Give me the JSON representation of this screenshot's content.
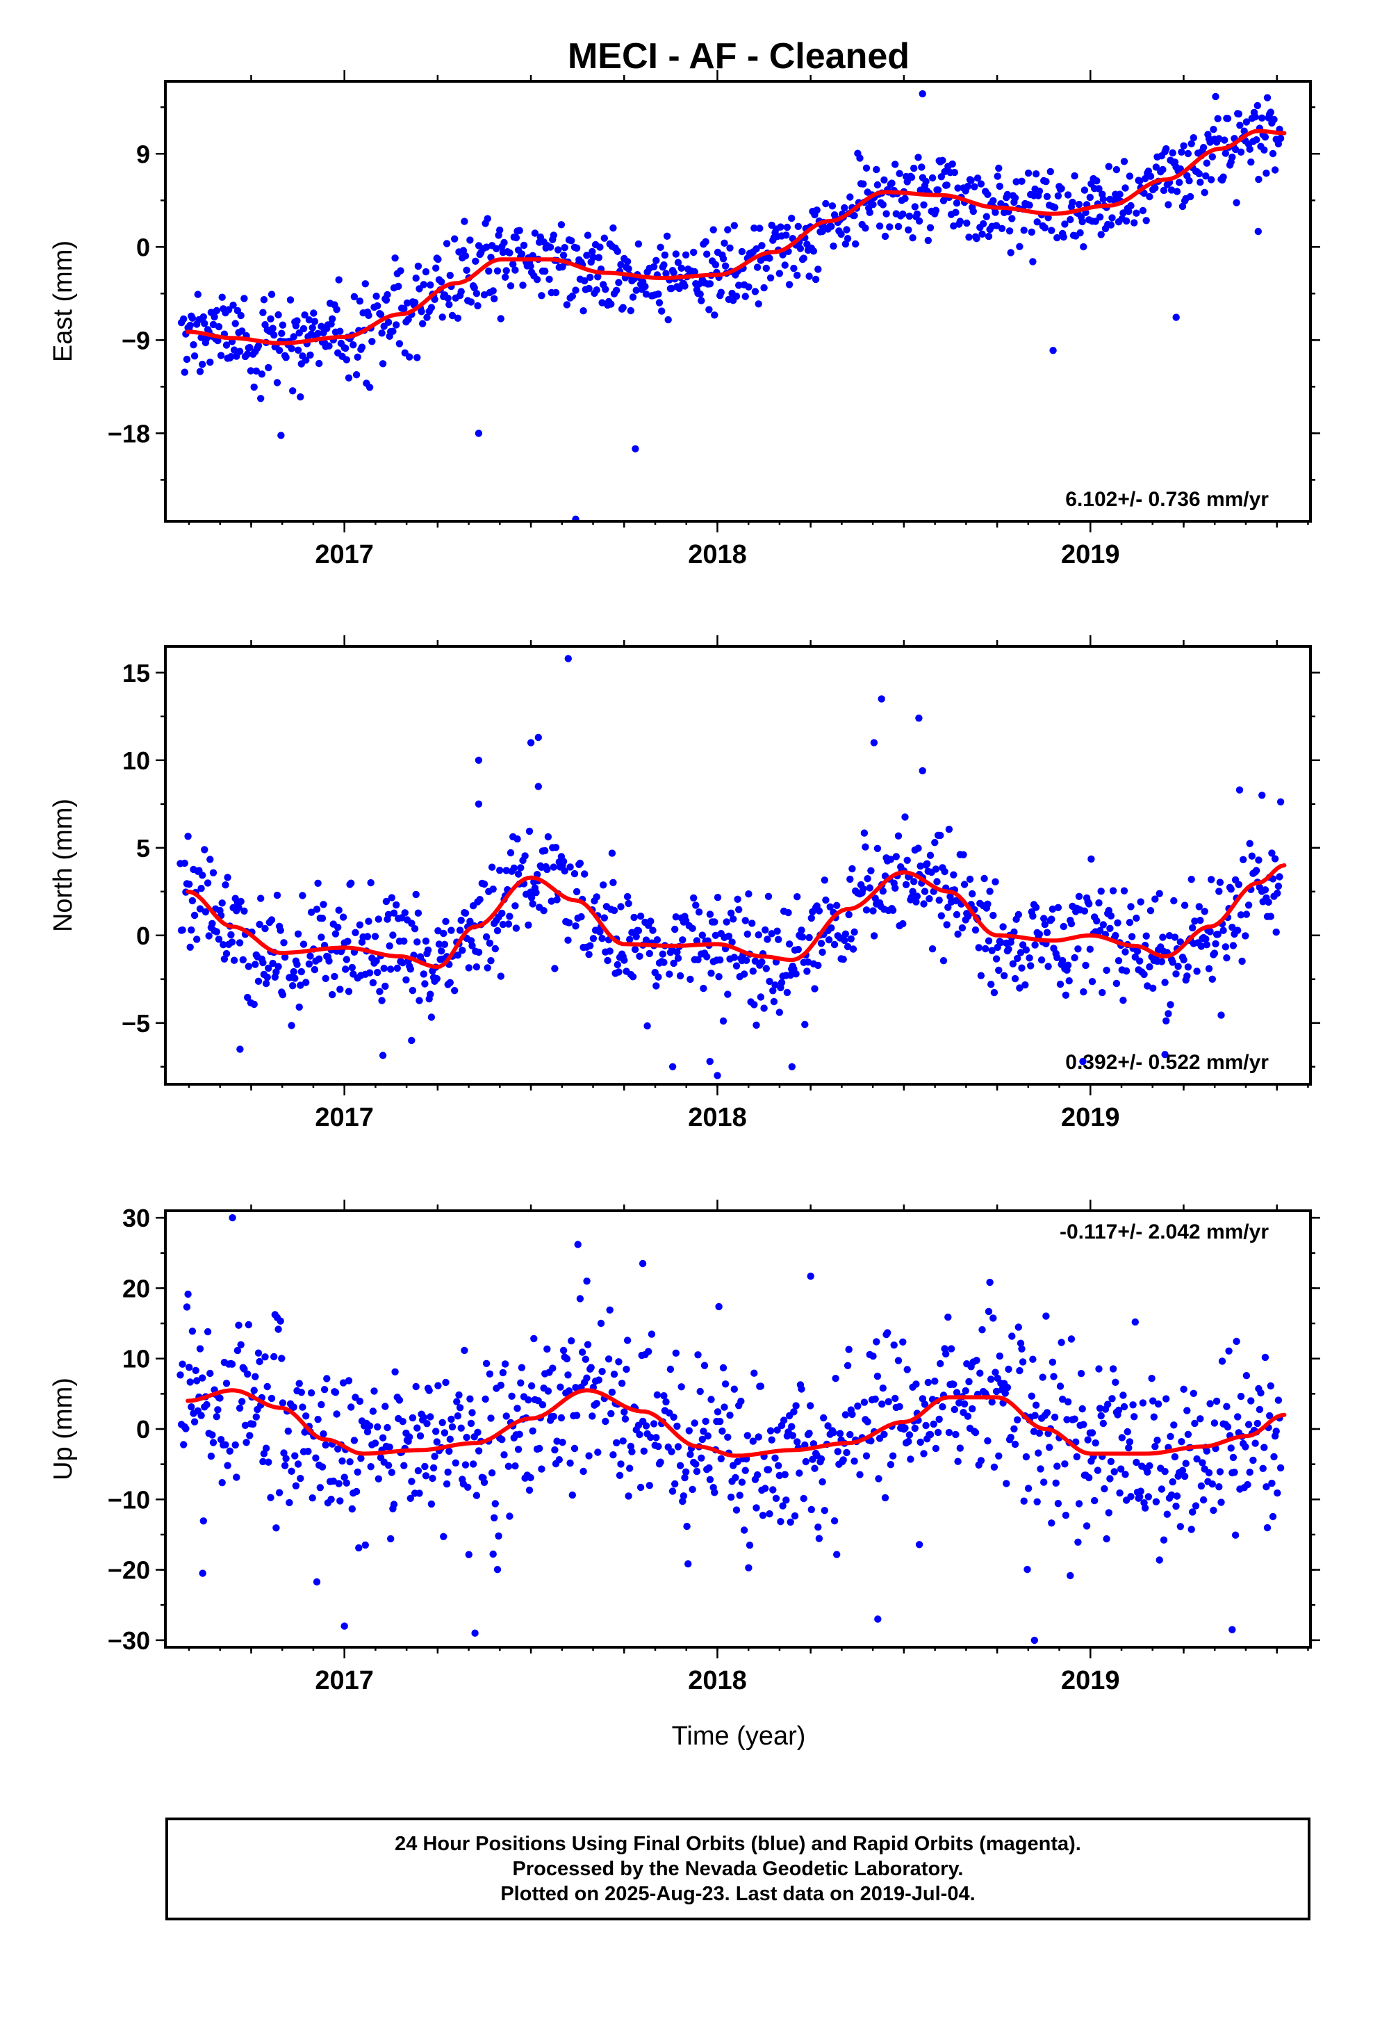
{
  "figure": {
    "title": "MECI  - AF - Cleaned",
    "xlabel": "Time (year)"
  },
  "footer": {
    "line1": "24 Hour Positions Using Final Orbits (blue) and Rapid Orbits (magenta).",
    "line2": "Processed by the Nevada Geodetic Laboratory.",
    "line3": "Plotted on 2025-Aug-23. Last data on 2019-Jul-04."
  },
  "colors": {
    "dots": "#0000ff",
    "fit": "#ff0000",
    "frame": "#000000"
  },
  "chart_data": [
    {
      "type": "scatter",
      "name": "east",
      "ylabel": "East (mm)",
      "rate_text": "6.102+/- 0.736 mm/yr",
      "rate_position": "bottom-right",
      "xlim": [
        2016.52,
        2019.59
      ],
      "ylim": [
        -26.5,
        16.0
      ],
      "yticks": [
        -18,
        -9,
        0,
        9
      ],
      "ytick_labels": [
        "−18",
        "−9",
        "0",
        "9"
      ],
      "xticks": [
        2017,
        2018,
        2019
      ],
      "xtick_labels": [
        "2017",
        "2018",
        "2019"
      ],
      "trend": {
        "rate_mm_yr": 6.102,
        "value_2018": -0.6
      },
      "seasonal": {
        "annual_amp": 2.2,
        "annual_phase": 3.7,
        "semiannual_amp": 0.3,
        "semiannual_phase": 1.0
      },
      "fit_curve": [
        [
          2016.58,
          -8.2
        ],
        [
          2016.7,
          -8.8
        ],
        [
          2016.83,
          -9.3
        ],
        [
          2017.0,
          -8.7
        ],
        [
          2017.15,
          -6.5
        ],
        [
          2017.3,
          -3.5
        ],
        [
          2017.42,
          -1.2
        ],
        [
          2017.55,
          -1.2
        ],
        [
          2017.7,
          -2.5
        ],
        [
          2017.85,
          -3.0
        ],
        [
          2018.0,
          -2.7
        ],
        [
          2018.15,
          -0.5
        ],
        [
          2018.3,
          2.5
        ],
        [
          2018.45,
          5.3
        ],
        [
          2018.6,
          5.0
        ],
        [
          2018.75,
          3.8
        ],
        [
          2018.9,
          3.2
        ],
        [
          2019.05,
          4.0
        ],
        [
          2019.2,
          6.5
        ],
        [
          2019.35,
          9.5
        ],
        [
          2019.45,
          11.2
        ],
        [
          2019.52,
          11.0
        ]
      ],
      "noise_sd": 2.0,
      "outliers": [
        [
          2016.83,
          -18.2
        ],
        [
          2017.36,
          -18.0
        ],
        [
          2017.62,
          -26.3
        ],
        [
          2017.78,
          -19.5
        ],
        [
          2018.55,
          14.8
        ],
        [
          2019.45,
          1.5
        ],
        [
          2018.9,
          -10.0
        ],
        [
          2019.23,
          -6.8
        ]
      ]
    },
    {
      "type": "scatter",
      "name": "north",
      "ylabel": "North (mm)",
      "rate_text": "0.392+/- 0.522 mm/yr",
      "rate_position": "bottom-right",
      "xlim": [
        2016.52,
        2019.59
      ],
      "ylim": [
        -8.5,
        16.5
      ],
      "yticks": [
        -5,
        0,
        5,
        10,
        15
      ],
      "ytick_labels": [
        "−5",
        "0",
        "5",
        "10",
        "15"
      ],
      "xticks": [
        2017,
        2018,
        2019
      ],
      "xtick_labels": [
        "2017",
        "2018",
        "2019"
      ],
      "trend": {
        "rate_mm_yr": 0.392,
        "value_2018": 0.5
      },
      "seasonal": {
        "annual_amp": 1.8,
        "annual_phase": 3.3,
        "semiannual_amp": 0.6,
        "semiannual_phase": 0.5
      },
      "fit_curve": [
        [
          2016.58,
          2.5
        ],
        [
          2016.7,
          0.5
        ],
        [
          2016.83,
          -1.0
        ],
        [
          2017.0,
          -0.7
        ],
        [
          2017.15,
          -1.2
        ],
        [
          2017.25,
          -1.8
        ],
        [
          2017.35,
          0.5
        ],
        [
          2017.5,
          3.3
        ],
        [
          2017.62,
          2.0
        ],
        [
          2017.75,
          -0.5
        ],
        [
          2017.88,
          -0.6
        ],
        [
          2018.0,
          -0.5
        ],
        [
          2018.12,
          -1.2
        ],
        [
          2018.2,
          -1.4
        ],
        [
          2018.35,
          1.5
        ],
        [
          2018.5,
          3.6
        ],
        [
          2018.62,
          2.5
        ],
        [
          2018.75,
          0.0
        ],
        [
          2018.9,
          -0.3
        ],
        [
          2019.0,
          0.0
        ],
        [
          2019.12,
          -0.6
        ],
        [
          2019.2,
          -1.2
        ],
        [
          2019.32,
          0.5
        ],
        [
          2019.45,
          3.0
        ],
        [
          2019.52,
          4.0
        ]
      ],
      "noise_sd": 1.6,
      "outliers": [
        [
          2017.36,
          10.0
        ],
        [
          2017.36,
          7.5
        ],
        [
          2017.5,
          11.0
        ],
        [
          2017.52,
          11.3
        ],
        [
          2017.52,
          8.5
        ],
        [
          2017.6,
          15.8
        ],
        [
          2018.44,
          13.5
        ],
        [
          2018.54,
          12.4
        ],
        [
          2018.42,
          11.0
        ],
        [
          2018.55,
          9.4
        ],
        [
          2016.72,
          -6.5
        ],
        [
          2017.18,
          -6.0
        ],
        [
          2017.88,
          -7.5
        ],
        [
          2017.98,
          -7.2
        ],
        [
          2018.0,
          -8.0
        ],
        [
          2018.2,
          -7.5
        ],
        [
          2018.98,
          -7.2
        ],
        [
          2019.2,
          -6.8
        ],
        [
          2019.4,
          8.3
        ],
        [
          2019.46,
          8.0
        ]
      ]
    },
    {
      "type": "scatter",
      "name": "up",
      "ylabel": "Up (mm)",
      "rate_text": "-0.117+/- 2.042 mm/yr",
      "rate_position": "top-right",
      "xlim": [
        2016.52,
        2019.59
      ],
      "ylim": [
        -31.0,
        31.0
      ],
      "yticks": [
        -30,
        -20,
        -10,
        0,
        10,
        20,
        30
      ],
      "ytick_labels": [
        "−30",
        "−20",
        "−10",
        "0",
        "10",
        "20",
        "30"
      ],
      "xticks": [
        2017,
        2018,
        2019
      ],
      "xtick_labels": [
        "2017",
        "2018",
        "2019"
      ],
      "trend": {
        "rate_mm_yr": -0.117,
        "value_2018": 0.0
      },
      "seasonal": {
        "annual_amp": 4.5,
        "annual_phase": 2.6,
        "semiannual_amp": 1.0,
        "semiannual_phase": 0.4
      },
      "fit_curve": [
        [
          2016.58,
          4.0
        ],
        [
          2016.7,
          5.5
        ],
        [
          2016.83,
          3.0
        ],
        [
          2016.95,
          -1.5
        ],
        [
          2017.05,
          -3.5
        ],
        [
          2017.2,
          -3.0
        ],
        [
          2017.35,
          -2.0
        ],
        [
          2017.5,
          1.5
        ],
        [
          2017.65,
          5.5
        ],
        [
          2017.8,
          2.5
        ],
        [
          2017.95,
          -2.5
        ],
        [
          2018.05,
          -3.8
        ],
        [
          2018.2,
          -3.0
        ],
        [
          2018.35,
          -2.0
        ],
        [
          2018.5,
          1.0
        ],
        [
          2018.62,
          4.5
        ],
        [
          2018.75,
          4.5
        ],
        [
          2018.88,
          0.0
        ],
        [
          2019.0,
          -3.5
        ],
        [
          2019.15,
          -3.5
        ],
        [
          2019.3,
          -2.5
        ],
        [
          2019.42,
          -1.0
        ],
        [
          2019.52,
          2.0
        ]
      ],
      "noise_sd": 6.5,
      "outliers": [
        [
          2016.7,
          30.0
        ],
        [
          2017.0,
          -28.0
        ],
        [
          2017.35,
          -29.0
        ],
        [
          2018.43,
          -27.0
        ],
        [
          2018.85,
          -30.0
        ],
        [
          2019.38,
          -28.5
        ],
        [
          2017.8,
          23.5
        ],
        [
          2017.65,
          21.0
        ],
        [
          2018.25,
          21.7
        ],
        [
          2016.62,
          -20.5
        ]
      ]
    }
  ]
}
